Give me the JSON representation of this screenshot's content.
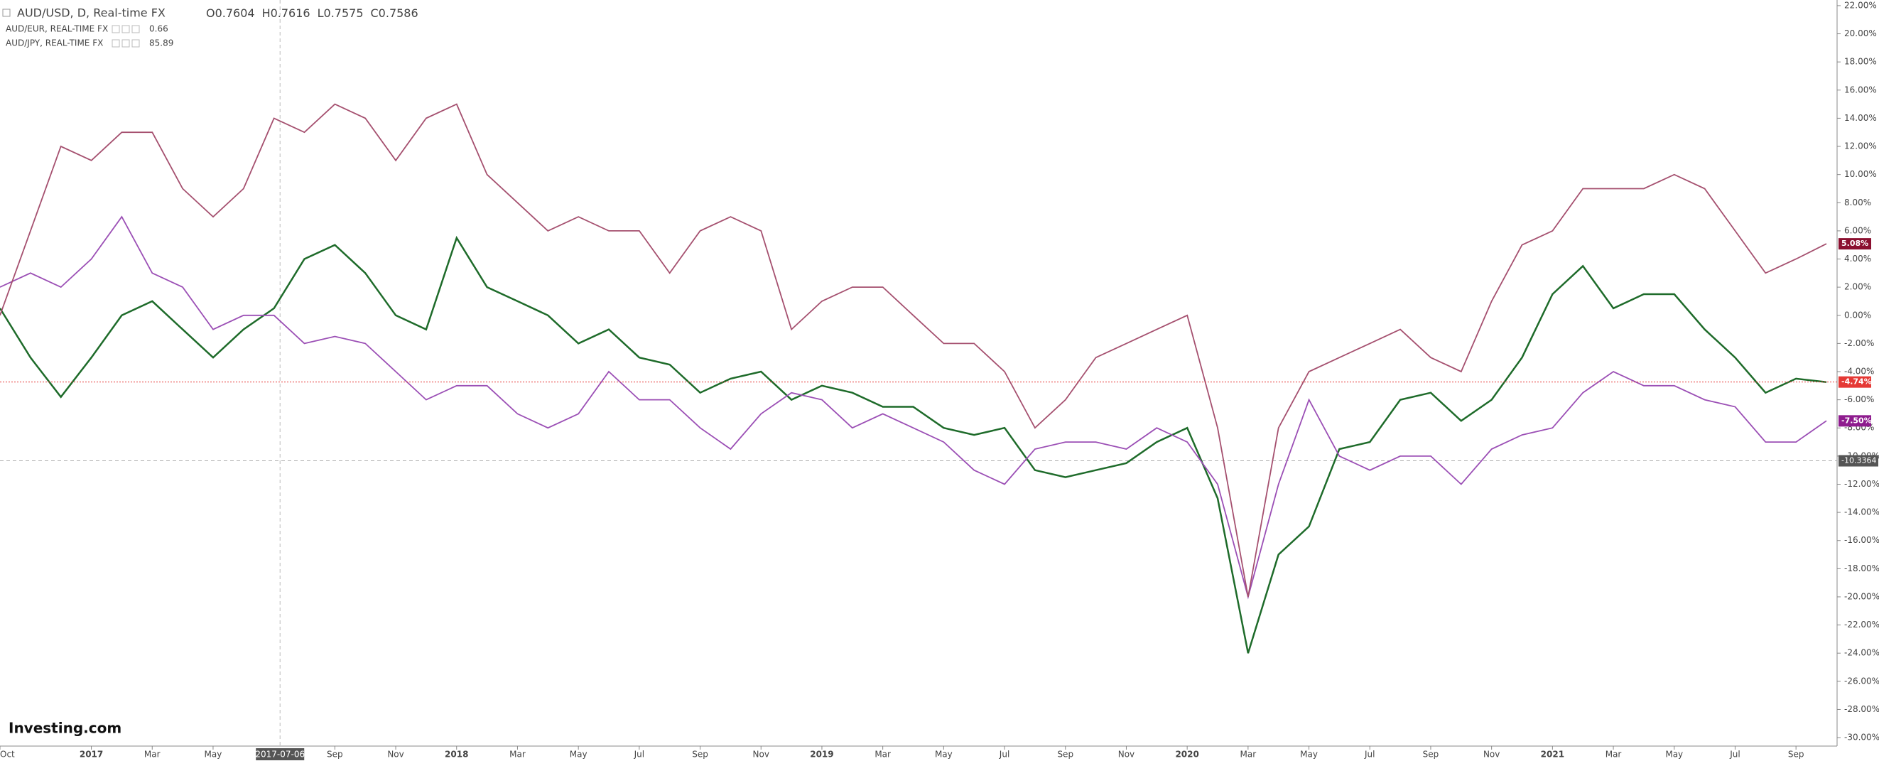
{
  "chart_data": {
    "type": "line",
    "title": "AUD/USD, D, Real-time FX",
    "ohlc": [
      {
        "value": 0.7604,
        "label": "O0.7604"
      },
      {
        "value": 0.7616,
        "label": "H0.7616"
      },
      {
        "value": 0.7575,
        "label": "L0.7575"
      },
      {
        "value": 0.7586,
        "label": "C0.7586"
      }
    ],
    "logo": "Investing.com",
    "x": [
      0,
      1,
      2,
      3,
      4,
      5,
      6,
      7,
      8,
      9,
      10,
      11,
      12,
      13,
      14,
      15,
      16,
      17,
      18,
      19,
      20,
      21,
      22,
      23,
      24,
      25,
      26,
      27,
      28,
      29,
      30,
      31,
      32,
      33,
      34,
      35,
      36,
      37,
      38,
      39,
      40,
      41,
      42,
      43,
      44,
      45,
      46,
      47,
      48,
      49,
      50,
      51,
      52,
      53,
      54,
      55,
      56,
      57,
      58,
      59,
      60
    ],
    "xlim": [
      0,
      60.35
    ],
    "xticks": [
      {
        "value": 0,
        "label": "Oct"
      },
      {
        "value": 3,
        "label": "2017"
      },
      {
        "value": 5,
        "label": "Mar"
      },
      {
        "value": 7,
        "label": "May"
      },
      {
        "value": 11,
        "label": "Sep"
      },
      {
        "value": 13,
        "label": "Nov"
      },
      {
        "value": 15,
        "label": "2018"
      },
      {
        "value": 17,
        "label": "Mar"
      },
      {
        "value": 19,
        "label": "May"
      },
      {
        "value": 21,
        "label": "Jul"
      },
      {
        "value": 23,
        "label": "Sep"
      },
      {
        "value": 25,
        "label": "Nov"
      },
      {
        "value": 27,
        "label": "2019"
      },
      {
        "value": 29,
        "label": "Mar"
      },
      {
        "value": 31,
        "label": "May"
      },
      {
        "value": 33,
        "label": "Jul"
      },
      {
        "value": 35,
        "label": "Sep"
      },
      {
        "value": 37,
        "label": "Nov"
      },
      {
        "value": 39,
        "label": "2020"
      },
      {
        "value": 41,
        "label": "Mar"
      },
      {
        "value": 43,
        "label": "May"
      },
      {
        "value": 45,
        "label": "Jul"
      },
      {
        "value": 47,
        "label": "Sep"
      },
      {
        "value": 49,
        "label": "Nov"
      },
      {
        "value": 51,
        "label": "2021"
      },
      {
        "value": 53,
        "label": "Mar"
      },
      {
        "value": 55,
        "label": "May"
      },
      {
        "value": 57,
        "label": "Jul"
      },
      {
        "value": 59,
        "label": "Sep"
      }
    ],
    "ylim": [
      -30.4,
      22.4
    ],
    "yticks": [
      {
        "value": 22,
        "label": "22.00%"
      },
      {
        "value": 20,
        "label": "20.00%"
      },
      {
        "value": 18,
        "label": "18.00%"
      },
      {
        "value": 16,
        "label": "16.00%"
      },
      {
        "value": 14,
        "label": "14.00%"
      },
      {
        "value": 12,
        "label": "12.00%"
      },
      {
        "value": 10,
        "label": "10.00%"
      },
      {
        "value": 8,
        "label": "8.00%"
      },
      {
        "value": 6,
        "label": "6.00%"
      },
      {
        "value": 4,
        "label": "4.00%"
      },
      {
        "value": 2,
        "label": "2.00%"
      },
      {
        "value": 0,
        "label": "0.00%"
      },
      {
        "value": -2,
        "label": "-2.00%"
      },
      {
        "value": -4,
        "label": "-4.00%"
      },
      {
        "value": -6,
        "label": "-6.00%"
      },
      {
        "value": -8,
        "label": "-8.00%"
      },
      {
        "value": -10,
        "label": "-10.00%"
      },
      {
        "value": -12,
        "label": "-12.00%"
      },
      {
        "value": -14,
        "label": "-14.00%"
      },
      {
        "value": -16,
        "label": "-16.00%"
      },
      {
        "value": -18,
        "label": "-18.00%"
      },
      {
        "value": -20,
        "label": "-20.00%"
      },
      {
        "value": -22,
        "label": "-22.00%"
      },
      {
        "value": -24,
        "label": "-24.00%"
      },
      {
        "value": -26,
        "label": "-26.00%"
      },
      {
        "value": -28,
        "label": "-28.00%"
      },
      {
        "value": -30,
        "label": "-30.00%"
      }
    ],
    "crosshair": {
      "x": 9.2,
      "x_label": "2017-07-06",
      "y": -10.3364
    },
    "series": [
      {
        "name": "AUD/USD, D, Real-time FX",
        "color": "#1e6b2a",
        "badge_color": "#e53935",
        "values": [
          0.5,
          -3,
          -5.8,
          -3,
          0,
          1,
          -1,
          -3,
          -1,
          0.5,
          4,
          5,
          3,
          0,
          -1,
          5.5,
          2,
          1,
          0,
          -2,
          -1,
          -3,
          -3.5,
          -5.5,
          -4.5,
          -4,
          -6,
          -5,
          -5.5,
          -6.5,
          -6.5,
          -8,
          -8.5,
          -8,
          -11,
          -11.5,
          -11,
          -10.5,
          -9,
          -8,
          -13,
          -24,
          -17,
          -15,
          -9.5,
          -9,
          -6,
          -5.5,
          -7.5,
          -6,
          -3,
          1.5,
          3.5,
          0.5,
          1.5,
          1.5,
          -1,
          -3,
          -5.5,
          -4.5,
          -4.74
        ],
        "value_labels": {
          "60": "-4.74%"
        }
      },
      {
        "name": "AUD/EUR, REAL-TIME FX",
        "color": "#9b4fb5",
        "badge_color": "#8e1b8e",
        "price": 0.66,
        "values": [
          2,
          3,
          2,
          4,
          7,
          3,
          2,
          -1,
          0,
          0,
          -2,
          -1.5,
          -2,
          -4,
          -6,
          -5,
          -5,
          -7,
          -8,
          -7,
          -4,
          -6,
          -6,
          -8,
          -9.5,
          -7,
          -5.5,
          -6,
          -8,
          -7,
          -8,
          -9,
          -11,
          -12,
          -9.5,
          -9,
          -9,
          -9.5,
          -8,
          -9,
          -12,
          -20,
          -12,
          -6,
          -10,
          -11,
          -10,
          -10,
          -12,
          -9.5,
          -8.5,
          -8,
          -5.5,
          -4,
          -5,
          -5,
          -6,
          -6.5,
          -9,
          -9,
          -7.5
        ],
        "value_labels": {
          "60": "-7.50%"
        }
      },
      {
        "name": "AUD/JPY, REAL-TIME FX",
        "color": "#a5506f",
        "badge_color": "#8b1030",
        "price": 85.89,
        "values": [
          0,
          6,
          12,
          11,
          13,
          13,
          9,
          7,
          9,
          14,
          13,
          15,
          14,
          11,
          14,
          15,
          10,
          8,
          6,
          7,
          6,
          6,
          3,
          6,
          7,
          6,
          -1,
          1,
          2,
          2,
          0,
          -2,
          -2,
          -4,
          -8,
          -6,
          -3,
          -2,
          -1,
          0,
          -8,
          -20,
          -8,
          -4,
          -3,
          -2,
          -1,
          -3,
          -4,
          1,
          5,
          6,
          9,
          9,
          9,
          10,
          9,
          6,
          3,
          4,
          5.08
        ],
        "value_labels": {
          "60": "5.08%"
        }
      }
    ]
  }
}
